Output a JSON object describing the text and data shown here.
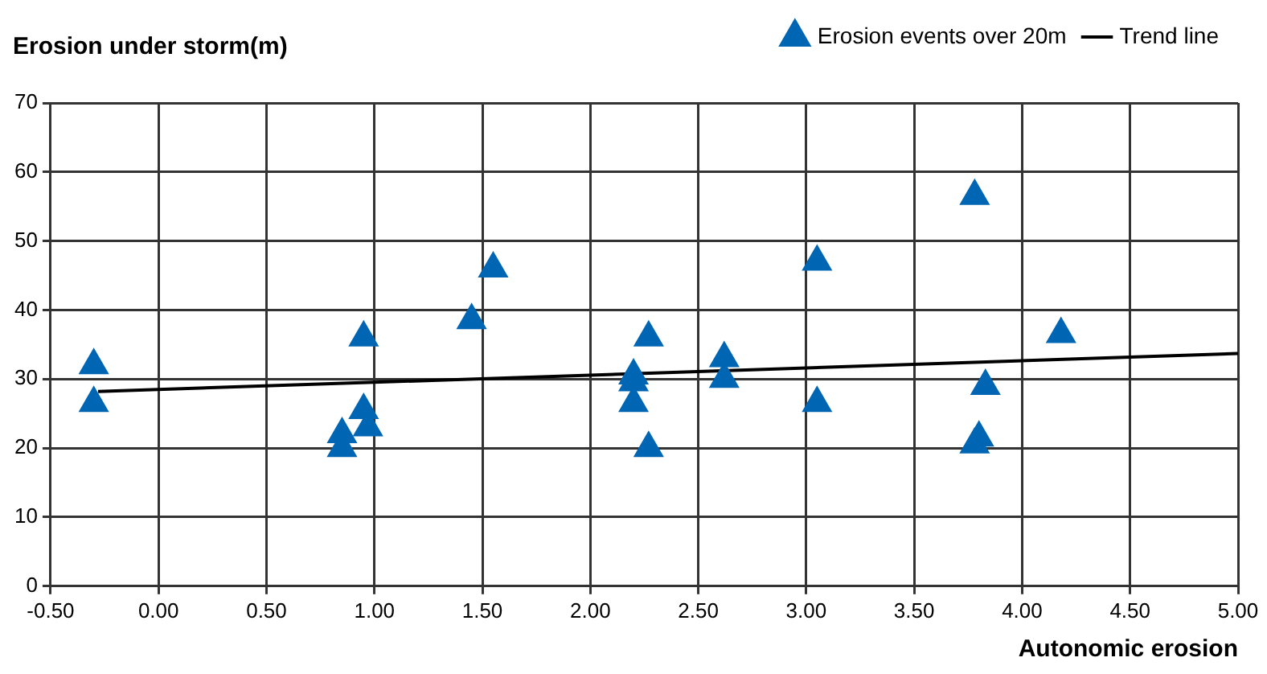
{
  "chart_data": {
    "type": "scatter",
    "xlabel": "Autonomic erosion",
    "ylabel": "Erosion under storm(m)",
    "series": [
      {
        "name": "Erosion events over 20m",
        "color": "#0066b3",
        "marker": "triangle",
        "x": [
          -0.3,
          -0.3,
          0.85,
          0.85,
          0.95,
          0.95,
          0.97,
          1.45,
          1.55,
          2.2,
          2.2,
          2.2,
          2.27,
          2.27,
          2.62,
          2.62,
          3.05,
          3.05,
          3.78,
          3.8,
          3.78,
          3.83,
          4.18
        ],
        "values": [
          32,
          26.5,
          22,
          20,
          36,
          25.5,
          23,
          38.5,
          46,
          30.5,
          29.5,
          26.5,
          36,
          20,
          33,
          30,
          47,
          26.5,
          56.5,
          21.5,
          20.5,
          29,
          36.5
        ]
      },
      {
        "name": "Trend line",
        "type": "line",
        "color": "#000000",
        "marker": "none",
        "x": [
          -0.28,
          5.0
        ],
        "values": [
          28.2,
          33.7
        ]
      }
    ],
    "xlim": [
      -0.5,
      5.0
    ],
    "xticks": [
      {
        "value": -0.5,
        "label": "-0.50"
      },
      {
        "value": 0,
        "label": "0.00"
      },
      {
        "value": 0.5,
        "label": "0.50"
      },
      {
        "value": 1,
        "label": "1.00"
      },
      {
        "value": 1.5,
        "label": "1.50"
      },
      {
        "value": 2,
        "label": "2.00"
      },
      {
        "value": 2.5,
        "label": "2.50"
      },
      {
        "value": 3,
        "label": "3.00"
      },
      {
        "value": 3.5,
        "label": "3.50"
      },
      {
        "value": 4,
        "label": "4.00"
      },
      {
        "value": 4.5,
        "label": "4.50"
      },
      {
        "value": 5,
        "label": "5.00"
      }
    ],
    "ylim": [
      0,
      70
    ],
    "yticks": [
      0,
      10,
      20,
      30,
      40,
      50,
      60,
      70
    ],
    "grid": true,
    "legend": "top right"
  }
}
